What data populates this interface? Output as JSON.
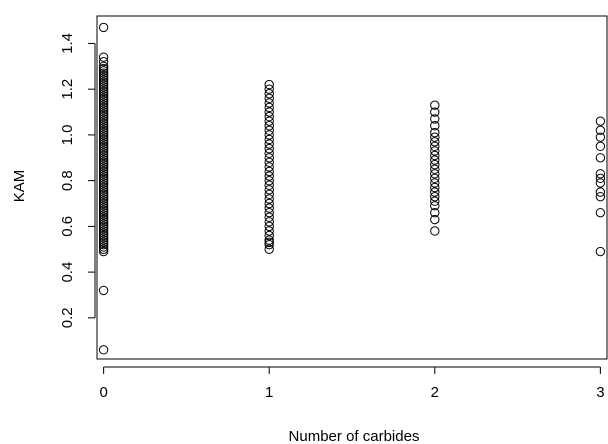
{
  "chart_data": {
    "type": "scatter",
    "title": "",
    "xlabel": "Number of carbides",
    "ylabel": "KAM",
    "x_ticks": [
      0,
      1,
      2,
      3
    ],
    "y_ticks": [
      0.2,
      0.4,
      0.6,
      0.8,
      1.0,
      1.2,
      1.4
    ],
    "y_tick_labels": [
      "0.2",
      "0.4",
      "0.6",
      "0.8",
      "1.0",
      "1.2",
      "1.4"
    ],
    "xlim": [
      -0.04,
      3.04
    ],
    "ylim": [
      0.02,
      1.52
    ],
    "grid": false,
    "series": [
      {
        "x": 0,
        "values": [
          0.06,
          0.32,
          0.49,
          0.5,
          0.51,
          0.52,
          0.53,
          0.54,
          0.55,
          0.56,
          0.57,
          0.58,
          0.59,
          0.6,
          0.61,
          0.62,
          0.63,
          0.64,
          0.65,
          0.66,
          0.67,
          0.68,
          0.69,
          0.7,
          0.71,
          0.72,
          0.73,
          0.74,
          0.75,
          0.76,
          0.77,
          0.78,
          0.79,
          0.8,
          0.81,
          0.82,
          0.83,
          0.84,
          0.85,
          0.86,
          0.87,
          0.88,
          0.89,
          0.9,
          0.91,
          0.92,
          0.93,
          0.94,
          0.95,
          0.96,
          0.97,
          0.98,
          0.99,
          1.0,
          1.01,
          1.02,
          1.03,
          1.04,
          1.05,
          1.06,
          1.07,
          1.08,
          1.09,
          1.1,
          1.11,
          1.12,
          1.13,
          1.14,
          1.15,
          1.16,
          1.17,
          1.18,
          1.19,
          1.2,
          1.21,
          1.22,
          1.23,
          1.24,
          1.25,
          1.26,
          1.27,
          1.28,
          1.29,
          1.3,
          1.32,
          1.34,
          1.47
        ]
      },
      {
        "x": 1,
        "values": [
          0.5,
          0.52,
          0.53,
          0.54,
          0.56,
          0.58,
          0.6,
          0.62,
          0.64,
          0.66,
          0.68,
          0.7,
          0.72,
          0.74,
          0.76,
          0.78,
          0.8,
          0.82,
          0.84,
          0.86,
          0.88,
          0.9,
          0.92,
          0.94,
          0.96,
          0.98,
          1.0,
          1.02,
          1.04,
          1.06,
          1.08,
          1.1,
          1.12,
          1.14,
          1.16,
          1.18,
          1.2,
          1.22
        ]
      },
      {
        "x": 2,
        "values": [
          0.58,
          0.63,
          0.66,
          0.69,
          0.71,
          0.73,
          0.75,
          0.77,
          0.79,
          0.81,
          0.83,
          0.85,
          0.87,
          0.89,
          0.91,
          0.93,
          0.95,
          0.97,
          0.99,
          1.01,
          1.04,
          1.07,
          1.1,
          1.13
        ]
      },
      {
        "x": 3,
        "values": [
          0.49,
          0.66,
          0.73,
          0.75,
          0.79,
          0.81,
          0.83,
          0.9,
          0.95,
          0.99,
          1.02,
          1.06
        ]
      }
    ]
  }
}
